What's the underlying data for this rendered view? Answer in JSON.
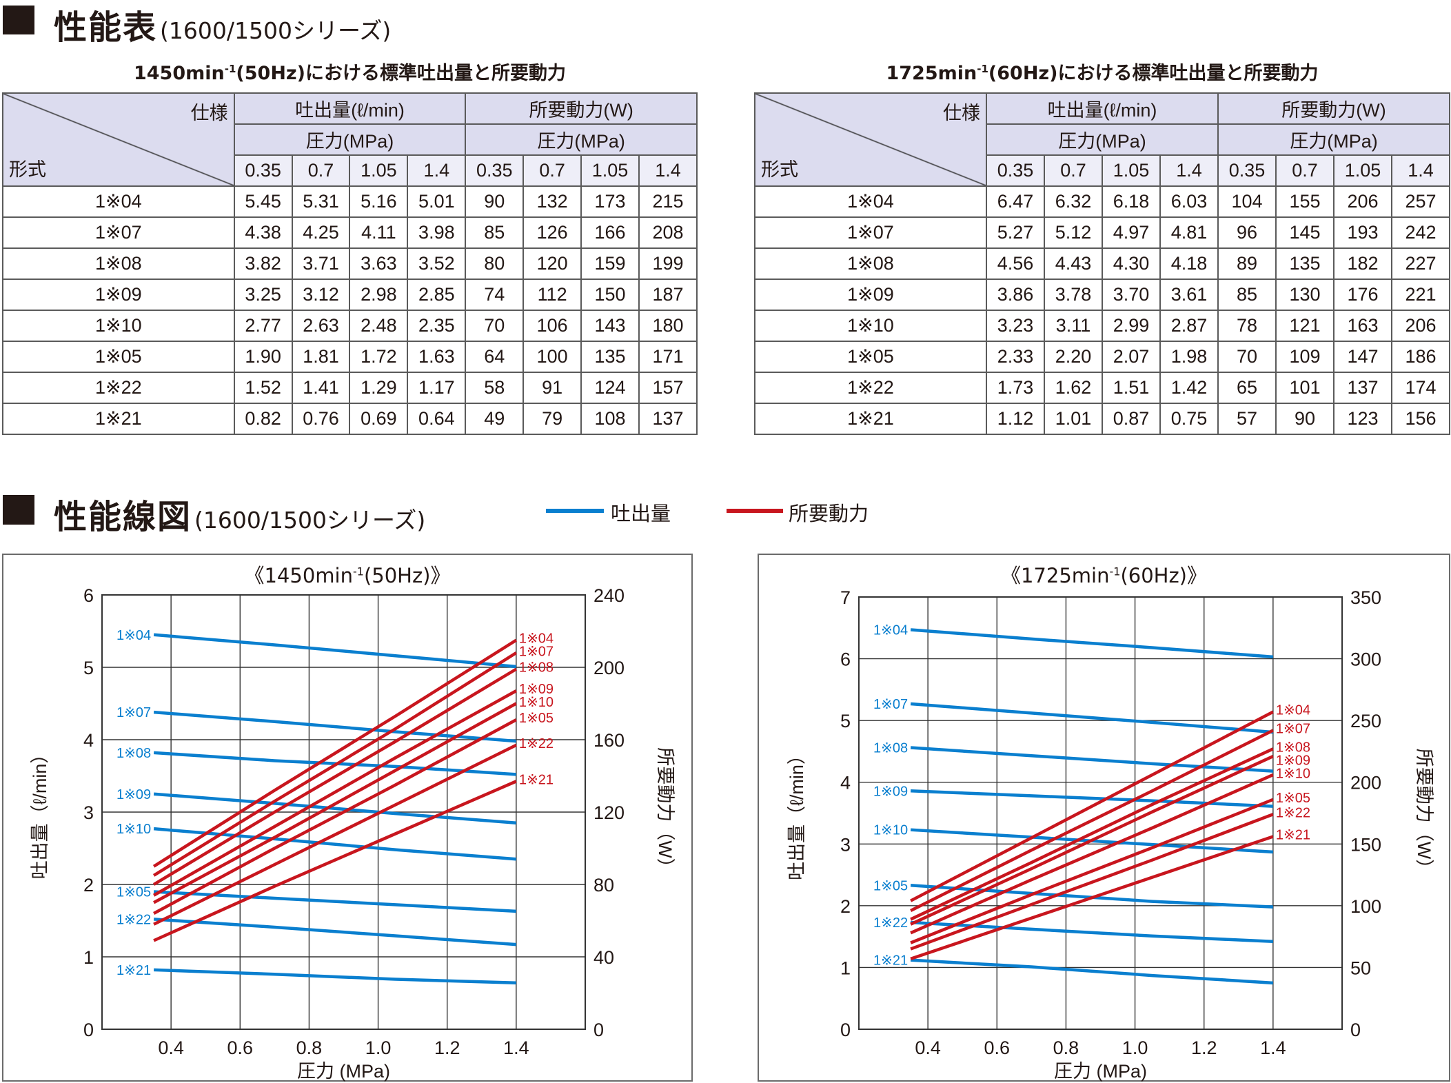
{
  "section1": {
    "title": "性能表",
    "subtitle": "(1600/1500シリーズ)"
  },
  "section2": {
    "title": "性能線図",
    "subtitle": "(1600/1500シリーズ)"
  },
  "legend": {
    "flow": "吐出量",
    "power": "所要動力"
  },
  "colors": {
    "flow": "#0a7fcf",
    "power": "#c8161e",
    "header": "#dcdcef",
    "header_light": "#eeeef8"
  },
  "tables": [
    {
      "caption": {
        "pre": "1450min",
        "sup": "-1",
        "post": "(50Hz)における標準吐出量と所要動力"
      },
      "corner_top": "仕様",
      "corner_bottom": "形式",
      "group_headers": [
        "吐出量(ℓ/min)",
        "所要動力(W)"
      ],
      "sub_header": "圧力(MPa)",
      "pressures": [
        "0.35",
        "0.7",
        "1.05",
        "1.4"
      ],
      "rows": [
        {
          "model": "1※04",
          "flow": [
            "5.45",
            "5.31",
            "5.16",
            "5.01"
          ],
          "power": [
            "90",
            "132",
            "173",
            "215"
          ]
        },
        {
          "model": "1※07",
          "flow": [
            "4.38",
            "4.25",
            "4.11",
            "3.98"
          ],
          "power": [
            "85",
            "126",
            "166",
            "208"
          ]
        },
        {
          "model": "1※08",
          "flow": [
            "3.82",
            "3.71",
            "3.63",
            "3.52"
          ],
          "power": [
            "80",
            "120",
            "159",
            "199"
          ]
        },
        {
          "model": "1※09",
          "flow": [
            "3.25",
            "3.12",
            "2.98",
            "2.85"
          ],
          "power": [
            "74",
            "112",
            "150",
            "187"
          ]
        },
        {
          "model": "1※10",
          "flow": [
            "2.77",
            "2.63",
            "2.48",
            "2.35"
          ],
          "power": [
            "70",
            "106",
            "143",
            "180"
          ]
        },
        {
          "model": "1※05",
          "flow": [
            "1.90",
            "1.81",
            "1.72",
            "1.63"
          ],
          "power": [
            "64",
            "100",
            "135",
            "171"
          ]
        },
        {
          "model": "1※22",
          "flow": [
            "1.52",
            "1.41",
            "1.29",
            "1.17"
          ],
          "power": [
            "58",
            "91",
            "124",
            "157"
          ]
        },
        {
          "model": "1※21",
          "flow": [
            "0.82",
            "0.76",
            "0.69",
            "0.64"
          ],
          "power": [
            "49",
            "79",
            "108",
            "137"
          ]
        }
      ]
    },
    {
      "caption": {
        "pre": "1725min",
        "sup": "-1",
        "post": "(60Hz)における標準吐出量と所要動力"
      },
      "corner_top": "仕様",
      "corner_bottom": "形式",
      "group_headers": [
        "吐出量(ℓ/min)",
        "所要動力(W)"
      ],
      "sub_header": "圧力(MPa)",
      "pressures": [
        "0.35",
        "0.7",
        "1.05",
        "1.4"
      ],
      "rows": [
        {
          "model": "1※04",
          "flow": [
            "6.47",
            "6.32",
            "6.18",
            "6.03"
          ],
          "power": [
            "104",
            "155",
            "206",
            "257"
          ]
        },
        {
          "model": "1※07",
          "flow": [
            "5.27",
            "5.12",
            "4.97",
            "4.81"
          ],
          "power": [
            "96",
            "145",
            "193",
            "242"
          ]
        },
        {
          "model": "1※08",
          "flow": [
            "4.56",
            "4.43",
            "4.30",
            "4.18"
          ],
          "power": [
            "89",
            "135",
            "182",
            "227"
          ]
        },
        {
          "model": "1※09",
          "flow": [
            "3.86",
            "3.78",
            "3.70",
            "3.61"
          ],
          "power": [
            "85",
            "130",
            "176",
            "221"
          ]
        },
        {
          "model": "1※10",
          "flow": [
            "3.23",
            "3.11",
            "2.99",
            "2.87"
          ],
          "power": [
            "78",
            "121",
            "163",
            "206"
          ]
        },
        {
          "model": "1※05",
          "flow": [
            "2.33",
            "2.20",
            "2.07",
            "1.98"
          ],
          "power": [
            "70",
            "109",
            "147",
            "186"
          ]
        },
        {
          "model": "1※22",
          "flow": [
            "1.73",
            "1.62",
            "1.51",
            "1.42"
          ],
          "power": [
            "65",
            "101",
            "137",
            "174"
          ]
        },
        {
          "model": "1※21",
          "flow": [
            "1.12",
            "1.01",
            "0.87",
            "0.75"
          ],
          "power": [
            "57",
            "90",
            "123",
            "156"
          ]
        }
      ]
    }
  ],
  "chart_data": [
    {
      "type": "line",
      "title": {
        "pre": "《1450min",
        "sup": "-1",
        "post": "(50Hz)》"
      },
      "xlabel": "圧力 (MPa)",
      "ylabel_left": "吐出量（ℓ/min）",
      "ylabel_right": "所要動力（W）",
      "x": [
        0.35,
        0.7,
        1.05,
        1.4
      ],
      "xlim": [
        0.2,
        1.6
      ],
      "xticks": [
        0.4,
        0.6,
        0.8,
        1.0,
        1.2,
        1.4
      ],
      "xtick_labels": [
        "0.4",
        "0.6",
        "0.8",
        "1.0",
        "1.2",
        "1.4"
      ],
      "ylim_left": [
        0,
        6
      ],
      "yticks_left": [
        "0",
        "1",
        "2",
        "3",
        "4",
        "5",
        "6"
      ],
      "ylim_right": [
        0,
        240
      ],
      "yticks_right": [
        "0",
        "40",
        "80",
        "120",
        "160",
        "200",
        "240"
      ],
      "grid": true,
      "series": [
        {
          "name": "1※04",
          "flow": [
            5.45,
            5.31,
            5.16,
            5.01
          ],
          "power": [
            90,
            132,
            173,
            215
          ]
        },
        {
          "name": "1※07",
          "flow": [
            4.38,
            4.25,
            4.11,
            3.98
          ],
          "power": [
            85,
            126,
            166,
            208
          ]
        },
        {
          "name": "1※08",
          "flow": [
            3.82,
            3.71,
            3.63,
            3.52
          ],
          "power": [
            80,
            120,
            159,
            199
          ]
        },
        {
          "name": "1※09",
          "flow": [
            3.25,
            3.12,
            2.98,
            2.85
          ],
          "power": [
            74,
            112,
            150,
            187
          ]
        },
        {
          "name": "1※10",
          "flow": [
            2.77,
            2.63,
            2.48,
            2.35
          ],
          "power": [
            70,
            106,
            143,
            180
          ]
        },
        {
          "name": "1※05",
          "flow": [
            1.9,
            1.81,
            1.72,
            1.63
          ],
          "power": [
            64,
            100,
            135,
            171
          ]
        },
        {
          "name": "1※22",
          "flow": [
            1.52,
            1.41,
            1.29,
            1.17
          ],
          "power": [
            58,
            91,
            124,
            157
          ]
        },
        {
          "name": "1※21",
          "flow": [
            0.82,
            0.76,
            0.69,
            0.64
          ],
          "power": [
            49,
            79,
            108,
            137
          ]
        }
      ]
    },
    {
      "type": "line",
      "title": {
        "pre": "《1725min",
        "sup": "-1",
        "post": "(60Hz)》"
      },
      "xlabel": "圧力 (MPa)",
      "ylabel_left": "吐出量（ℓ/min）",
      "ylabel_right": "所要動力（W）",
      "x": [
        0.35,
        0.7,
        1.05,
        1.4
      ],
      "xlim": [
        0.2,
        1.6
      ],
      "xticks": [
        0.4,
        0.6,
        0.8,
        1.0,
        1.2,
        1.4
      ],
      "xtick_labels": [
        "0.4",
        "0.6",
        "0.8",
        "1.0",
        "1.2",
        "1.4"
      ],
      "ylim_left": [
        0,
        7
      ],
      "yticks_left": [
        "0",
        "1",
        "2",
        "3",
        "4",
        "5",
        "6",
        "7"
      ],
      "ylim_right": [
        0,
        350
      ],
      "yticks_right": [
        "0",
        "50",
        "100",
        "150",
        "200",
        "250",
        "300",
        "350"
      ],
      "grid": true,
      "series": [
        {
          "name": "1※04",
          "flow": [
            6.47,
            6.32,
            6.18,
            6.03
          ],
          "power": [
            104,
            155,
            206,
            257
          ]
        },
        {
          "name": "1※07",
          "flow": [
            5.27,
            5.12,
            4.97,
            4.81
          ],
          "power": [
            96,
            145,
            193,
            242
          ]
        },
        {
          "name": "1※08",
          "flow": [
            4.56,
            4.43,
            4.3,
            4.18
          ],
          "power": [
            89,
            135,
            182,
            227
          ]
        },
        {
          "name": "1※09",
          "flow": [
            3.86,
            3.78,
            3.7,
            3.61
          ],
          "power": [
            85,
            130,
            176,
            221
          ]
        },
        {
          "name": "1※10",
          "flow": [
            3.23,
            3.11,
            2.99,
            2.87
          ],
          "power": [
            78,
            121,
            163,
            206
          ]
        },
        {
          "name": "1※05",
          "flow": [
            2.33,
            2.2,
            2.07,
            1.98
          ],
          "power": [
            70,
            109,
            147,
            186
          ]
        },
        {
          "name": "1※22",
          "flow": [
            1.73,
            1.62,
            1.51,
            1.42
          ],
          "power": [
            65,
            101,
            137,
            174
          ]
        },
        {
          "name": "1※21",
          "flow": [
            1.12,
            1.01,
            0.87,
            0.75
          ],
          "power": [
            57,
            90,
            123,
            156
          ]
        }
      ]
    }
  ]
}
